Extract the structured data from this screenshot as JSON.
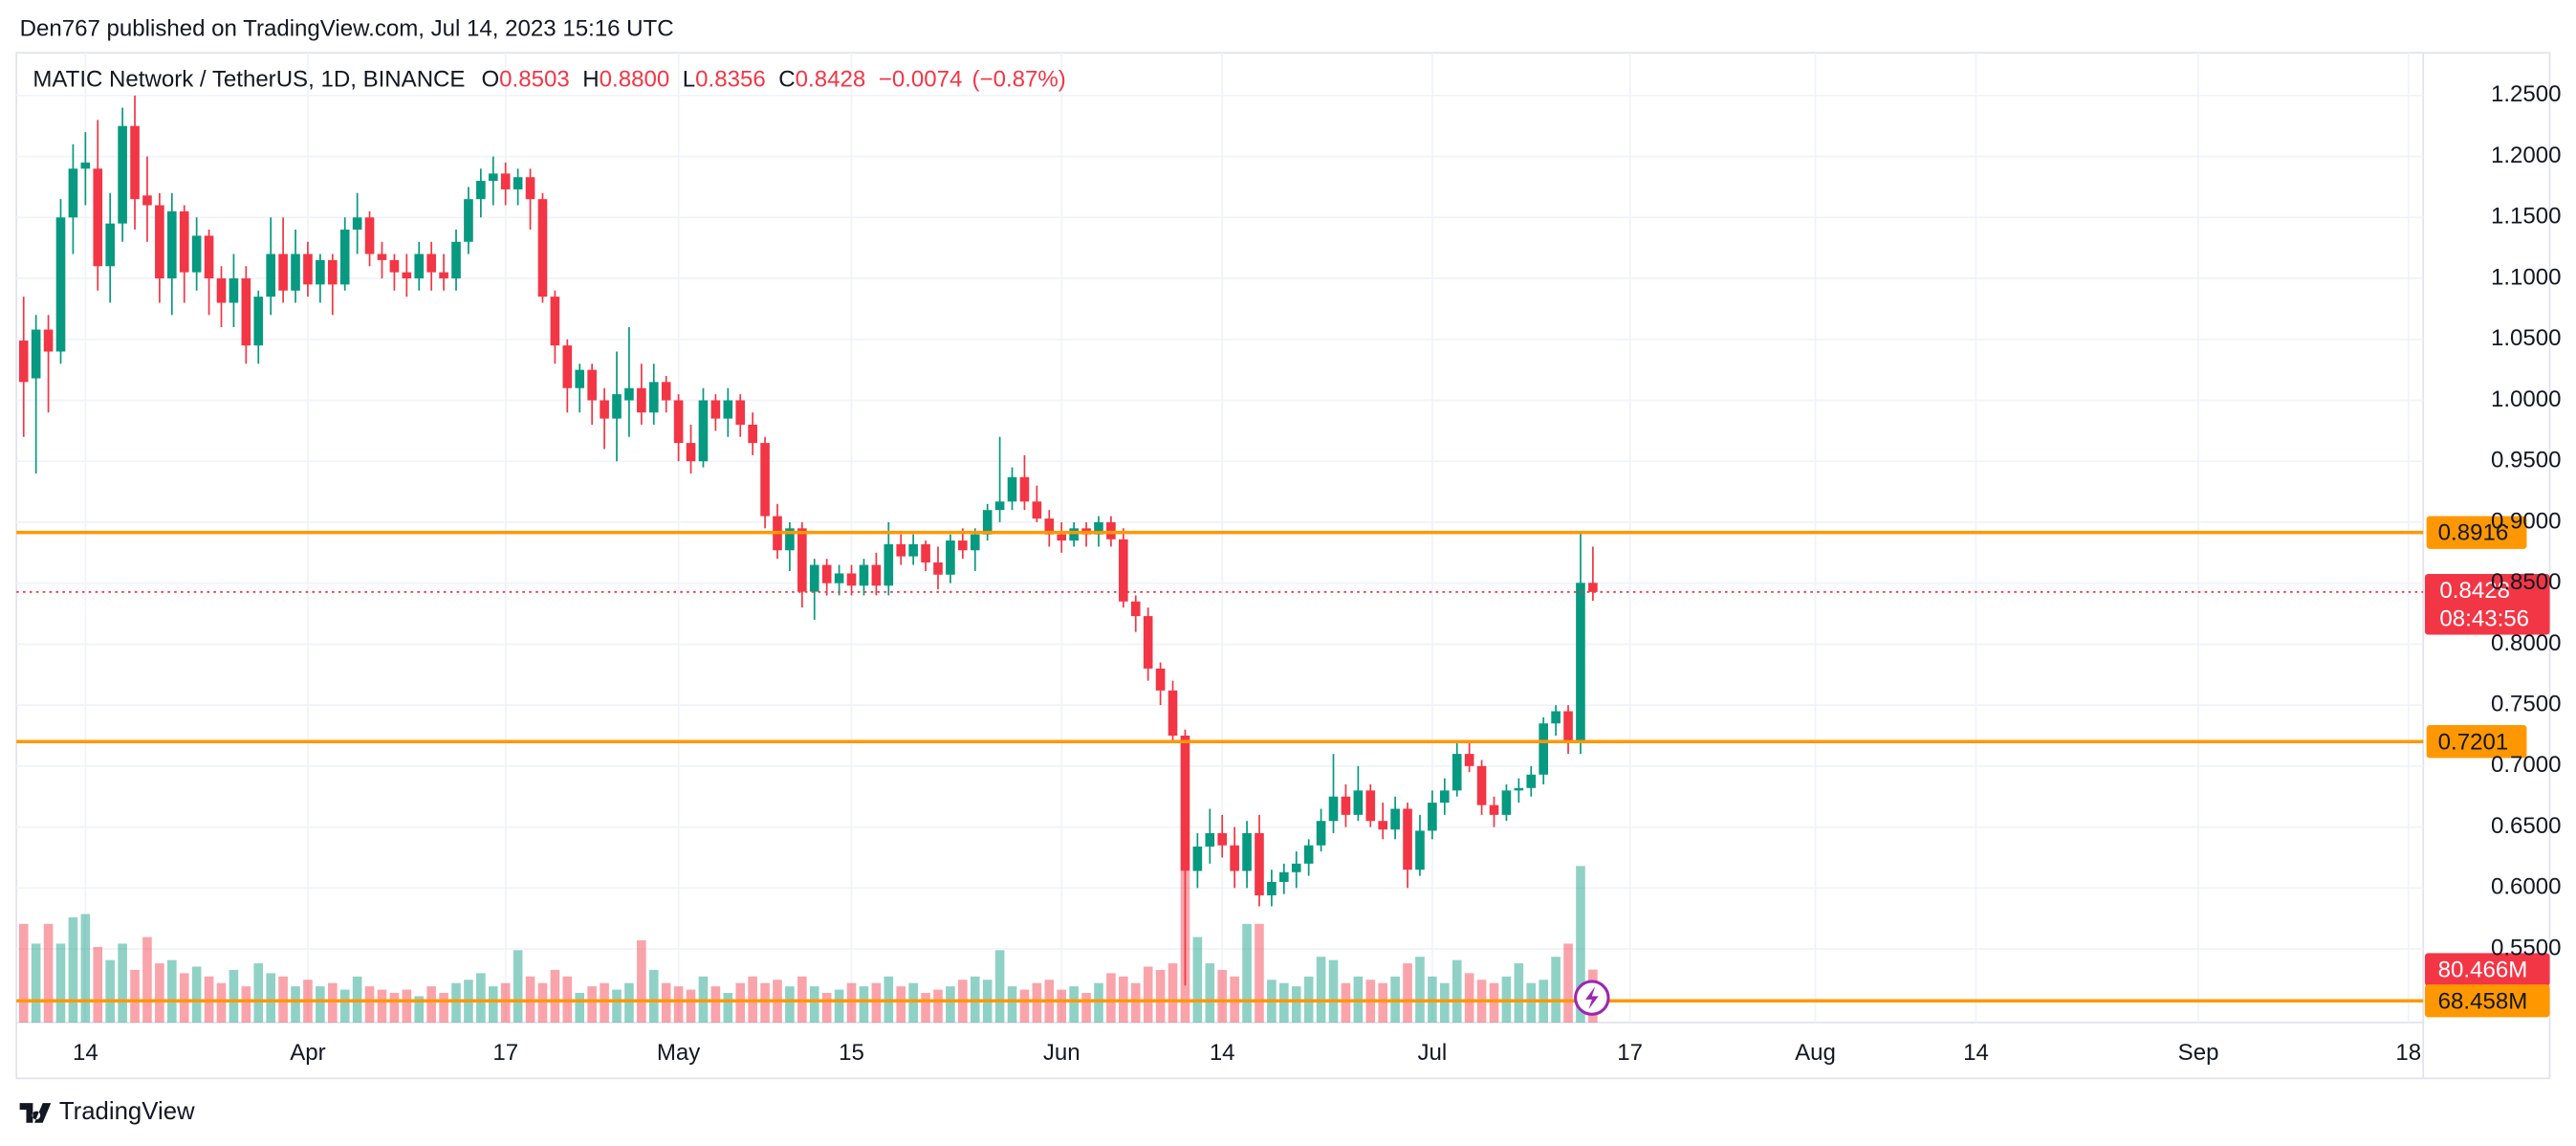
{
  "header": "Den767 published on TradingView.com, Jul 14, 2023 15:16 UTC",
  "footer": "TradingView",
  "chart_data": {
    "type": "candlestick",
    "symbol": "MATIC Network / TetherUS, 1D, BINANCE",
    "legend_values": [
      {
        "key": "O",
        "value": 0.8503,
        "label": "0.8503"
      },
      {
        "key": "H",
        "value": 0.88,
        "label": "0.8800"
      },
      {
        "key": "L",
        "value": 0.8356,
        "label": "0.8356"
      },
      {
        "key": "C",
        "value": 0.8428,
        "label": "0.8428"
      }
    ],
    "change": {
      "value": -0.0074,
      "label": "−0.0074"
    },
    "change_pct": {
      "value": -0.87,
      "label": "(−0.87%)"
    },
    "up_color": "#089981",
    "down_color": "#f23645",
    "level_color": "#ff9800",
    "x": [
      "03-09",
      "03-10",
      "03-11",
      "03-12",
      "03-13",
      "03-14",
      "03-15",
      "03-16",
      "03-17",
      "03-18",
      "03-19",
      "03-20",
      "03-21",
      "03-22",
      "03-23",
      "03-24",
      "03-25",
      "03-26",
      "03-27",
      "03-28",
      "03-29",
      "03-30",
      "03-31",
      "04-01",
      "04-02",
      "04-03",
      "04-04",
      "04-05",
      "04-06",
      "04-07",
      "04-08",
      "04-09",
      "04-10",
      "04-11",
      "04-12",
      "04-13",
      "04-14",
      "04-15",
      "04-16",
      "04-17",
      "04-18",
      "04-19",
      "04-20",
      "04-21",
      "04-22",
      "04-23",
      "04-24",
      "04-25",
      "04-26",
      "04-27",
      "04-28",
      "04-29",
      "04-30",
      "05-01",
      "05-02",
      "05-03",
      "05-04",
      "05-05",
      "05-06",
      "05-07",
      "05-08",
      "05-09",
      "05-10",
      "05-11",
      "05-12",
      "05-13",
      "05-14",
      "05-15",
      "05-16",
      "05-17",
      "05-18",
      "05-19",
      "05-20",
      "05-21",
      "05-22",
      "05-23",
      "05-24",
      "05-25",
      "05-26",
      "05-27",
      "05-28",
      "05-29",
      "05-30",
      "05-31",
      "06-01",
      "06-02",
      "06-03",
      "06-04",
      "06-05",
      "06-06",
      "06-07",
      "06-08",
      "06-09",
      "06-10",
      "06-11",
      "06-12",
      "06-13",
      "06-14",
      "06-15",
      "06-16",
      "06-17",
      "06-18",
      "06-19",
      "06-20",
      "06-21",
      "06-22",
      "06-23",
      "06-24",
      "06-25",
      "06-26",
      "06-27",
      "06-28",
      "06-29",
      "06-30",
      "07-01",
      "07-02",
      "07-03",
      "07-04",
      "07-05",
      "07-06",
      "07-07",
      "07-08",
      "07-09",
      "07-10",
      "07-11",
      "07-12",
      "07-13",
      "07-14"
    ],
    "ohlc": [
      [
        1.049,
        1.085,
        0.97,
        1.015
      ],
      [
        1.018,
        1.07,
        0.94,
        1.058
      ],
      [
        1.058,
        1.07,
        0.99,
        1.04
      ],
      [
        1.04,
        1.165,
        1.03,
        1.15
      ],
      [
        1.15,
        1.21,
        1.12,
        1.19
      ],
      [
        1.19,
        1.22,
        1.16,
        1.195
      ],
      [
        1.19,
        1.23,
        1.09,
        1.11
      ],
      [
        1.11,
        1.17,
        1.08,
        1.145
      ],
      [
        1.145,
        1.24,
        1.13,
        1.225
      ],
      [
        1.225,
        1.25,
        1.14,
        1.165
      ],
      [
        1.168,
        1.2,
        1.13,
        1.16
      ],
      [
        1.16,
        1.17,
        1.08,
        1.1
      ],
      [
        1.1,
        1.17,
        1.07,
        1.155
      ],
      [
        1.155,
        1.16,
        1.08,
        1.105
      ],
      [
        1.105,
        1.15,
        1.09,
        1.135
      ],
      [
        1.135,
        1.14,
        1.07,
        1.1
      ],
      [
        1.1,
        1.11,
        1.06,
        1.08
      ],
      [
        1.08,
        1.12,
        1.06,
        1.1
      ],
      [
        1.1,
        1.11,
        1.03,
        1.045
      ],
      [
        1.045,
        1.09,
        1.03,
        1.085
      ],
      [
        1.085,
        1.15,
        1.07,
        1.12
      ],
      [
        1.12,
        1.15,
        1.08,
        1.09
      ],
      [
        1.09,
        1.14,
        1.08,
        1.12
      ],
      [
        1.12,
        1.13,
        1.085,
        1.095
      ],
      [
        1.095,
        1.12,
        1.08,
        1.115
      ],
      [
        1.115,
        1.12,
        1.07,
        1.095
      ],
      [
        1.095,
        1.15,
        1.09,
        1.14
      ],
      [
        1.14,
        1.17,
        1.12,
        1.15
      ],
      [
        1.15,
        1.155,
        1.11,
        1.12
      ],
      [
        1.12,
        1.13,
        1.1,
        1.115
      ],
      [
        1.115,
        1.12,
        1.09,
        1.105
      ],
      [
        1.105,
        1.12,
        1.085,
        1.1
      ],
      [
        1.1,
        1.13,
        1.09,
        1.12
      ],
      [
        1.12,
        1.13,
        1.09,
        1.105
      ],
      [
        1.105,
        1.12,
        1.09,
        1.1
      ],
      [
        1.1,
        1.14,
        1.09,
        1.13
      ],
      [
        1.13,
        1.175,
        1.12,
        1.165
      ],
      [
        1.165,
        1.19,
        1.15,
        1.18
      ],
      [
        1.18,
        1.2,
        1.16,
        1.186
      ],
      [
        1.186,
        1.195,
        1.16,
        1.173
      ],
      [
        1.173,
        1.19,
        1.16,
        1.183
      ],
      [
        1.183,
        1.19,
        1.14,
        1.165
      ],
      [
        1.165,
        1.17,
        1.08,
        1.085
      ],
      [
        1.085,
        1.09,
        1.03,
        1.045
      ],
      [
        1.045,
        1.05,
        0.99,
        1.01
      ],
      [
        1.01,
        1.03,
        0.99,
        1.025
      ],
      [
        1.025,
        1.03,
        0.98,
        1.0
      ],
      [
        1.0,
        1.01,
        0.96,
        0.985
      ],
      [
        0.985,
        1.04,
        0.95,
        1.005
      ],
      [
        1.0,
        1.06,
        0.97,
        1.01
      ],
      [
        1.01,
        1.03,
        0.98,
        0.99
      ],
      [
        0.99,
        1.03,
        0.98,
        1.015
      ],
      [
        1.015,
        1.02,
        0.99,
        1.0
      ],
      [
        1.0,
        1.005,
        0.95,
        0.965
      ],
      [
        0.965,
        0.98,
        0.94,
        0.95
      ],
      [
        0.95,
        1.01,
        0.945,
        1.0
      ],
      [
        1.0,
        1.005,
        0.975,
        0.985
      ],
      [
        0.985,
        1.01,
        0.97,
        1.0
      ],
      [
        1.0,
        1.005,
        0.97,
        0.98
      ],
      [
        0.98,
        0.99,
        0.955,
        0.965
      ],
      [
        0.965,
        0.97,
        0.895,
        0.905
      ],
      [
        0.905,
        0.915,
        0.87,
        0.877
      ],
      [
        0.877,
        0.9,
        0.86,
        0.895
      ],
      [
        0.895,
        0.9,
        0.83,
        0.843
      ],
      [
        0.843,
        0.87,
        0.82,
        0.865
      ],
      [
        0.865,
        0.87,
        0.84,
        0.85
      ],
      [
        0.85,
        0.865,
        0.84,
        0.858
      ],
      [
        0.858,
        0.865,
        0.84,
        0.848
      ],
      [
        0.848,
        0.87,
        0.84,
        0.865
      ],
      [
        0.865,
        0.875,
        0.84,
        0.848
      ],
      [
        0.848,
        0.9,
        0.84,
        0.882
      ],
      [
        0.882,
        0.89,
        0.865,
        0.872
      ],
      [
        0.872,
        0.89,
        0.865,
        0.882
      ],
      [
        0.882,
        0.885,
        0.86,
        0.867
      ],
      [
        0.867,
        0.88,
        0.845,
        0.857
      ],
      [
        0.857,
        0.89,
        0.85,
        0.885
      ],
      [
        0.885,
        0.895,
        0.87,
        0.877
      ],
      [
        0.877,
        0.895,
        0.86,
        0.89
      ],
      [
        0.89,
        0.915,
        0.885,
        0.91
      ],
      [
        0.91,
        0.97,
        0.9,
        0.917
      ],
      [
        0.917,
        0.945,
        0.91,
        0.937
      ],
      [
        0.937,
        0.955,
        0.91,
        0.917
      ],
      [
        0.917,
        0.93,
        0.9,
        0.903
      ],
      [
        0.903,
        0.91,
        0.88,
        0.89
      ],
      [
        0.89,
        0.9,
        0.875,
        0.885
      ],
      [
        0.885,
        0.9,
        0.88,
        0.895
      ],
      [
        0.895,
        0.9,
        0.88,
        0.89
      ],
      [
        0.89,
        0.905,
        0.88,
        0.9
      ],
      [
        0.9,
        0.905,
        0.88,
        0.886
      ],
      [
        0.886,
        0.895,
        0.83,
        0.835
      ],
      [
        0.835,
        0.84,
        0.81,
        0.823
      ],
      [
        0.823,
        0.83,
        0.77,
        0.78
      ],
      [
        0.78,
        0.785,
        0.75,
        0.762
      ],
      [
        0.762,
        0.77,
        0.72,
        0.725
      ],
      [
        0.725,
        0.73,
        0.52,
        0.614
      ],
      [
        0.614,
        0.645,
        0.6,
        0.634
      ],
      [
        0.634,
        0.665,
        0.62,
        0.645
      ],
      [
        0.645,
        0.66,
        0.625,
        0.635
      ],
      [
        0.635,
        0.65,
        0.6,
        0.614
      ],
      [
        0.614,
        0.655,
        0.6,
        0.645
      ],
      [
        0.645,
        0.66,
        0.585,
        0.594
      ],
      [
        0.594,
        0.615,
        0.585,
        0.605
      ],
      [
        0.605,
        0.62,
        0.595,
        0.613
      ],
      [
        0.613,
        0.63,
        0.6,
        0.62
      ],
      [
        0.62,
        0.64,
        0.61,
        0.635
      ],
      [
        0.635,
        0.665,
        0.63,
        0.655
      ],
      [
        0.655,
        0.71,
        0.645,
        0.675
      ],
      [
        0.675,
        0.685,
        0.65,
        0.66
      ],
      [
        0.66,
        0.7,
        0.655,
        0.68
      ],
      [
        0.68,
        0.685,
        0.65,
        0.655
      ],
      [
        0.655,
        0.67,
        0.64,
        0.648
      ],
      [
        0.648,
        0.675,
        0.64,
        0.665
      ],
      [
        0.665,
        0.67,
        0.6,
        0.615
      ],
      [
        0.615,
        0.66,
        0.61,
        0.647
      ],
      [
        0.647,
        0.68,
        0.64,
        0.67
      ],
      [
        0.67,
        0.69,
        0.66,
        0.68
      ],
      [
        0.68,
        0.72,
        0.675,
        0.71
      ],
      [
        0.71,
        0.72,
        0.695,
        0.7
      ],
      [
        0.7,
        0.705,
        0.66,
        0.668
      ],
      [
        0.668,
        0.675,
        0.65,
        0.66
      ],
      [
        0.66,
        0.685,
        0.655,
        0.68
      ],
      [
        0.68,
        0.69,
        0.67,
        0.682
      ],
      [
        0.682,
        0.7,
        0.675,
        0.693
      ],
      [
        0.693,
        0.74,
        0.685,
        0.735
      ],
      [
        0.735,
        0.75,
        0.725,
        0.745
      ],
      [
        0.745,
        0.75,
        0.71,
        0.72
      ],
      [
        0.72,
        0.8916,
        0.71,
        0.8503
      ],
      [
        0.8503,
        0.88,
        0.8356,
        0.8428
      ]
    ],
    "volume": [
      150,
      120,
      150,
      120,
      160,
      165,
      115,
      95,
      120,
      80,
      130,
      90,
      95,
      75,
      85,
      70,
      60,
      80,
      55,
      90,
      75,
      70,
      55,
      65,
      55,
      60,
      50,
      70,
      55,
      50,
      45,
      50,
      40,
      55,
      45,
      60,
      65,
      75,
      55,
      60,
      110,
      70,
      60,
      80,
      70,
      45,
      55,
      60,
      50,
      60,
      125,
      80,
      60,
      55,
      50,
      70,
      55,
      45,
      60,
      70,
      60,
      65,
      55,
      70,
      55,
      45,
      50,
      60,
      55,
      60,
      70,
      55,
      60,
      45,
      50,
      55,
      65,
      70,
      65,
      110,
      55,
      50,
      60,
      65,
      50,
      55,
      45,
      60,
      75,
      70,
      60,
      85,
      80,
      90,
      230,
      130,
      90,
      80,
      70,
      150,
      150,
      65,
      60,
      55,
      70,
      100,
      95,
      60,
      70,
      65,
      60,
      70,
      90,
      100,
      70,
      60,
      95,
      75,
      65,
      60,
      70,
      90,
      60,
      65,
      100,
      120,
      238,
      80.466
    ],
    "ylim": [
      0.4897,
      1.285
    ],
    "yticks": [
      {
        "value": 0.55,
        "label": "0.5500"
      },
      {
        "value": 0.6,
        "label": "0.6000"
      },
      {
        "value": 0.65,
        "label": "0.6500"
      },
      {
        "value": 0.7,
        "label": "0.7000"
      },
      {
        "value": 0.75,
        "label": "0.7500"
      },
      {
        "value": 0.8,
        "label": "0.8000"
      },
      {
        "value": 0.85,
        "label": "0.8500"
      },
      {
        "value": 0.9,
        "label": "0.9000"
      },
      {
        "value": 0.95,
        "label": "0.9500"
      },
      {
        "value": 1.0,
        "label": "1.0000"
      },
      {
        "value": 1.05,
        "label": "1.0500"
      },
      {
        "value": 1.1,
        "label": "1.1000"
      },
      {
        "value": 1.15,
        "label": "1.1500"
      },
      {
        "value": 1.2,
        "label": "1.2000"
      },
      {
        "value": 1.25,
        "label": "1.2500"
      }
    ],
    "y2lim": [
      0,
      250
    ],
    "xticks": [
      {
        "value": "03-14",
        "label": "14"
      },
      {
        "value": "04-01",
        "label": "Apr"
      },
      {
        "value": "04-17",
        "label": "17"
      },
      {
        "value": "05-01",
        "label": "May"
      },
      {
        "value": "05-15",
        "label": "15"
      },
      {
        "value": "06-01",
        "label": "Jun"
      },
      {
        "value": "06-14",
        "label": "14"
      },
      {
        "value": "07-01",
        "label": "Jul"
      },
      {
        "value": "07-17",
        "label": "17"
      },
      {
        "value": "08-01",
        "label": "Aug"
      },
      {
        "value": "08-14",
        "label": "14"
      },
      {
        "value": "09-01",
        "label": "Sep"
      },
      {
        "value": "09-18",
        "label": "18"
      }
    ],
    "levels": [
      {
        "value": 0.8916,
        "label": "0.8916"
      },
      {
        "value": 0.7201,
        "label": "0.7201"
      }
    ],
    "last_price": {
      "value": 0.8428,
      "label": "0.8428"
    },
    "countdown": "08:43:56",
    "volume_labels": [
      {
        "value": 80.466,
        "label": "80.466M"
      },
      {
        "value": 68.458,
        "label": "68.458M"
      }
    ]
  }
}
